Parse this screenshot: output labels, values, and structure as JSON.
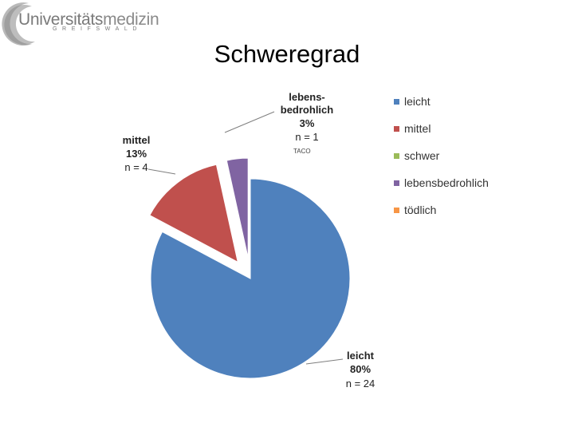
{
  "header": {
    "logo_text_light": "Universitäts",
    "logo_text_bold": "medizin",
    "logo_subtext": "GREIFSWALD",
    "logo_colors": {
      "gray": "#7a7a7a",
      "light": "#bdbdbd"
    }
  },
  "page_title": "Schweregrad",
  "chart_data": {
    "type": "pie",
    "title": "",
    "series": [
      {
        "name": "leicht",
        "value": 24,
        "percent": "80%",
        "n_label": "n = 24",
        "color": "#4f81bd",
        "explode": false
      },
      {
        "name": "mittel",
        "value": 4,
        "percent": "13%",
        "n_label": "n = 4",
        "color": "#c0504d",
        "explode": true
      },
      {
        "name": "schwer",
        "value": 0,
        "percent": "0%",
        "n_label": "",
        "color": "#9bbb59",
        "explode": false
      },
      {
        "name": "lebensbedrohlich",
        "value": 1,
        "percent": "3%",
        "n_label": "n = 1",
        "color": "#8064a2",
        "explode": true
      },
      {
        "name": "tödlich",
        "value": 0,
        "percent": "0%",
        "n_label": "",
        "color": "#f79646",
        "explode": false
      }
    ],
    "data_labels": {
      "leicht": {
        "lines": [
          "leicht",
          "80%"
        ],
        "n": "n = 24"
      },
      "mittel": {
        "lines": [
          "mittel",
          "13%"
        ],
        "n": "n = 4"
      },
      "lebensbedrohlich": {
        "lines": [
          "lebens-",
          "bedrohlich",
          "3%"
        ],
        "n": "n = 1"
      }
    },
    "annotation": "TACO",
    "legend_position": "right"
  }
}
